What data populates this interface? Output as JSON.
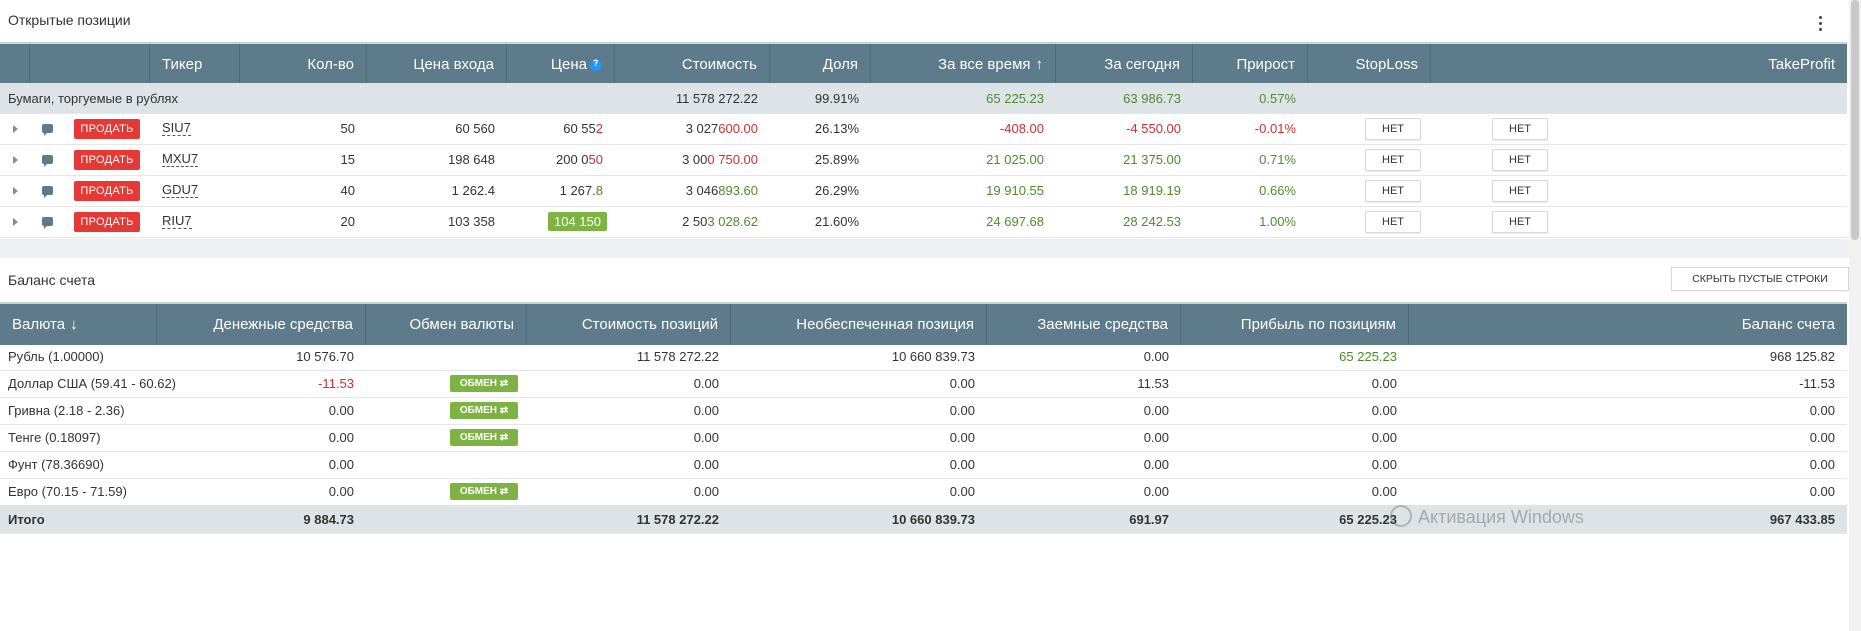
{
  "positions": {
    "title": "Открытые позиции",
    "headers": [
      "Тикер",
      "Кол-во",
      "Цена входа",
      "Цена",
      "Стоимость",
      "Доля",
      "За все время",
      "За сегодня",
      "Прирост",
      "StopLoss",
      "TakeProfit"
    ],
    "sort_arrow": "↑",
    "group": {
      "label": "Бумаги, торгуемые в рублях",
      "value": "11 578 272.22",
      "share": "99.91%",
      "all_time": "65 225.23",
      "today": "63 986.73",
      "growth": "0.57%"
    },
    "rows": [
      {
        "sell": "ПРОДАТЬ",
        "ticker": "SIU7",
        "qty": "50",
        "entry": "60 560",
        "price_a": "60 55",
        "price_b": "2",
        "value_a": "3 027 ",
        "value_b": "600.00",
        "share": "26.13%",
        "all_time": "-408.00",
        "today": "-4 550.00",
        "growth": "-0.01%",
        "sl": "НЕТ",
        "tp": "НЕТ"
      },
      {
        "sell": "ПРОДАТЬ",
        "ticker": "MXU7",
        "qty": "15",
        "entry": "198 648",
        "price_a": "200 0",
        "price_b": "50",
        "value_a": "3 00",
        "value_b": "0 750.00",
        "share": "25.89%",
        "all_time": "21 025.00",
        "today": "21 375.00",
        "growth": "0.71%",
        "sl": "НЕТ",
        "tp": "НЕТ"
      },
      {
        "sell": "ПРОДАТЬ",
        "ticker": "GDU7",
        "qty": "40",
        "entry": "1 262.4",
        "price_a": "1 267.",
        "price_b": "8",
        "value_a": "3 046 ",
        "value_b": "893.60",
        "share": "26.29%",
        "all_time": "19 910.55",
        "today": "18 919.19",
        "growth": "0.66%",
        "sl": "НЕТ",
        "tp": "НЕТ"
      },
      {
        "sell": "ПРОДАТЬ",
        "ticker": "RIU7",
        "qty": "20",
        "entry": "103 358",
        "price_hl": "104 150",
        "value_a": "2 50",
        "value_b": "3 028.62",
        "share": "21.60%",
        "all_time": "24 697.68",
        "today": "28 242.53",
        "growth": "1.00%",
        "sl": "НЕТ",
        "tp": "НЕТ"
      }
    ]
  },
  "balance": {
    "title": "Баланс счета",
    "hide_button": "СКРЫТЬ ПУСТЫЕ СТРОКИ",
    "headers": [
      "Валюта",
      "Денежные средства",
      "Обмен валюты",
      "Стоимость позиций",
      "Необеспеченная позиция",
      "Заемные средства",
      "Прибыль по позициям",
      "Баланс счета"
    ],
    "sort_arrow": "↓",
    "exchange_label": "ОБМЕН ⇄",
    "rows": [
      {
        "currency": "Рубль (1.00000)",
        "cash": "10 576.70",
        "exchange": false,
        "positions": "11 578 272.22",
        "uncovered": "10 660 839.73",
        "borrowed": "0.00",
        "profit": "65 225.23",
        "balance": "968 125.82"
      },
      {
        "currency": "Доллар США (59.41 - 60.62)",
        "cash": "-11.53",
        "exchange": true,
        "positions": "0.00",
        "uncovered": "0.00",
        "borrowed": "11.53",
        "profit": "0.00",
        "balance": "-11.53"
      },
      {
        "currency": "Гривна (2.18 - 2.36)",
        "cash": "0.00",
        "exchange": true,
        "positions": "0.00",
        "uncovered": "0.00",
        "borrowed": "0.00",
        "profit": "0.00",
        "balance": "0.00"
      },
      {
        "currency": "Тенге (0.18097)",
        "cash": "0.00",
        "exchange": true,
        "positions": "0.00",
        "uncovered": "0.00",
        "borrowed": "0.00",
        "profit": "0.00",
        "balance": "0.00"
      },
      {
        "currency": "Фунт (78.36690)",
        "cash": "0.00",
        "exchange": false,
        "positions": "0.00",
        "uncovered": "0.00",
        "borrowed": "0.00",
        "profit": "0.00",
        "balance": "0.00"
      },
      {
        "currency": "Евро (70.15 - 71.59)",
        "cash": "0.00",
        "exchange": true,
        "positions": "0.00",
        "uncovered": "0.00",
        "borrowed": "0.00",
        "profit": "0.00",
        "balance": "0.00"
      }
    ],
    "total": {
      "label": "Итого",
      "cash": "9 884.73",
      "positions": "11 578 272.22",
      "uncovered": "10 660 839.73",
      "borrowed": "691.97",
      "profit": "65 225.23",
      "balance": "967 433.85"
    }
  },
  "watermark": "Активация Windows"
}
